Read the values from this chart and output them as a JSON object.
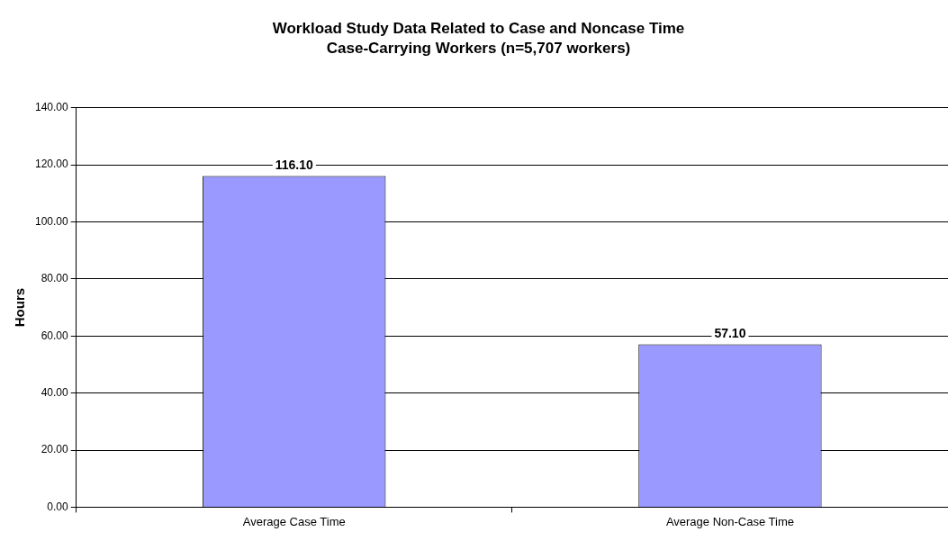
{
  "chart_data": {
    "type": "bar",
    "title": "Workload Study Data Related to Case and Noncase Time",
    "subtitle": "Case-Carrying Workers (n=5,707 workers)",
    "ylabel": "Hours",
    "categories": [
      "Average Case Time",
      "Average Non-Case Time"
    ],
    "values": [
      116.1,
      57.1
    ],
    "value_labels": [
      "116.10",
      "57.10"
    ],
    "color": "#9999ff",
    "ylim": [
      0,
      140
    ],
    "yticks": [
      {
        "value": 0,
        "label": "0.00"
      },
      {
        "value": 20,
        "label": "20.00"
      },
      {
        "value": 40,
        "label": "40.00"
      },
      {
        "value": 60,
        "label": "60.00"
      },
      {
        "value": 80,
        "label": "80.00"
      },
      {
        "value": 100,
        "label": "100.00"
      },
      {
        "value": 120,
        "label": "120.00"
      },
      {
        "value": 140,
        "label": "140.00"
      }
    ],
    "grid": "y",
    "legend": false
  }
}
